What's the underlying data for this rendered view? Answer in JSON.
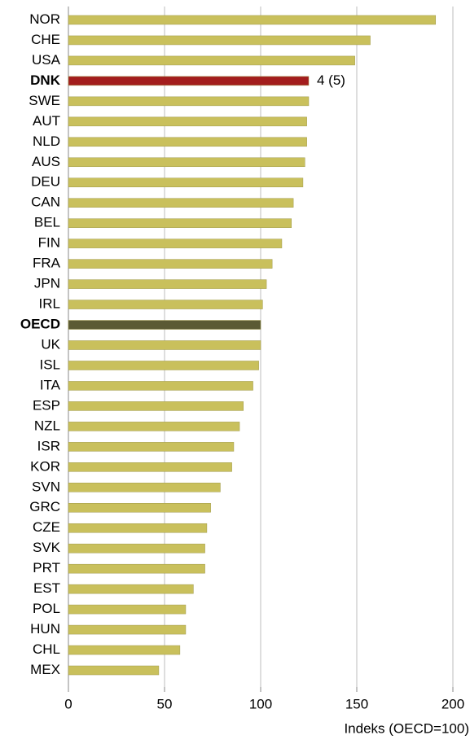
{
  "chart_data": {
    "type": "barh",
    "categories": [
      "NOR",
      "CHE",
      "USA",
      "DNK",
      "SWE",
      "AUT",
      "NLD",
      "AUS",
      "DEU",
      "CAN",
      "BEL",
      "FIN",
      "FRA",
      "JPN",
      "IRL",
      "OECD",
      "UK",
      "ISL",
      "ITA",
      "ESP",
      "NZL",
      "ISR",
      "KOR",
      "SVN",
      "GRC",
      "CZE",
      "SVK",
      "PRT",
      "EST",
      "POL",
      "HUN",
      "CHL",
      "MEX"
    ],
    "values": [
      191,
      157,
      149,
      125,
      125,
      124,
      124,
      123,
      122,
      117,
      116,
      111,
      106,
      103,
      101,
      100,
      100,
      99,
      96,
      91,
      89,
      86,
      85,
      79,
      74,
      72,
      71,
      71,
      65,
      61,
      61,
      58,
      47
    ],
    "color": "#c9c05c",
    "colors": {
      "DNK": "#a31d1d",
      "OECD": "#5b5a34"
    },
    "annotations": [
      {
        "category": "DNK",
        "text": "4 (5)"
      }
    ],
    "xlabel": "Indeks (OECD=100)",
    "xlim": [
      0,
      200
    ],
    "xticks": [
      0,
      50,
      100,
      150,
      200
    ],
    "grid": true
  }
}
